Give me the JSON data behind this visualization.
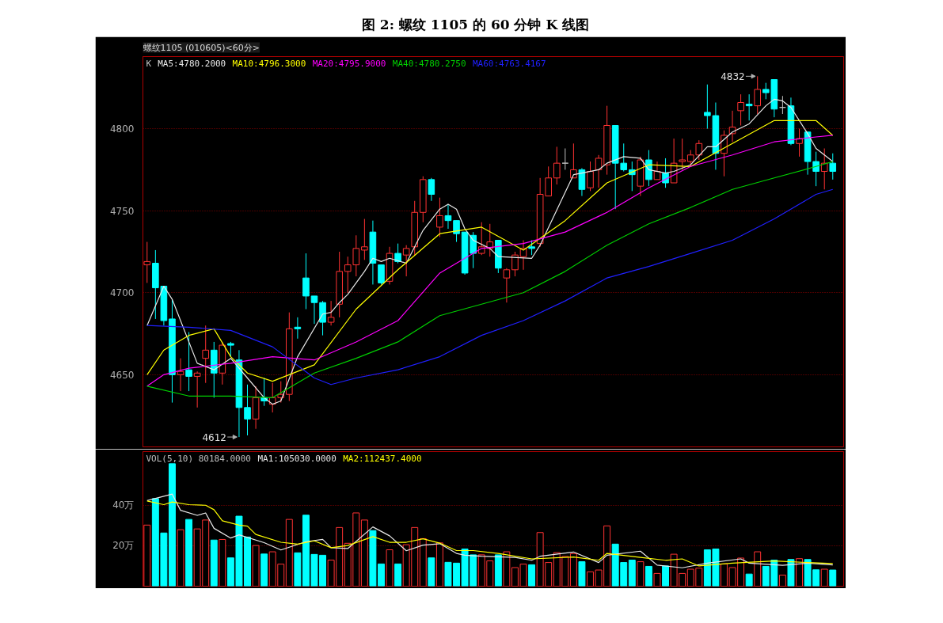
{
  "chart_data": [
    {
      "type": "candlestick",
      "title": "图 2:  螺纹 1105 的 60 分钟 K 线图",
      "subtitle": "螺纹1105 (010605)<60分>",
      "categories": [
        null,
        null,
        null,
        null,
        null,
        null,
        null,
        null,
        null,
        null,
        null,
        null,
        null,
        null,
        null,
        null,
        null,
        null,
        null,
        null,
        null,
        null,
        null,
        null,
        null,
        null,
        null,
        null,
        null,
        null,
        null,
        null,
        null,
        null,
        null,
        null,
        null,
        null,
        null,
        null,
        null,
        null,
        null,
        null,
        null,
        null,
        null,
        null,
        null,
        null,
        null,
        null,
        null,
        null,
        null,
        null,
        null,
        null,
        null,
        null,
        null,
        null,
        null,
        null,
        null,
        null,
        null,
        null,
        null,
        null,
        null,
        null,
        null,
        null,
        null,
        null,
        null,
        null,
        null,
        null,
        null,
        null,
        null
      ],
      "ylim": [
        4606,
        4844
      ],
      "yticks": [
        4650,
        4700,
        4750,
        4800
      ],
      "grid": "y",
      "tick_labels": "y",
      "legend_title": "K",
      "series": [
        {
          "ohlc": [
            [
              4717,
              4731,
              4706,
              4719
            ],
            [
              4718,
              4726,
              4684,
              4703
            ],
            [
              4704,
              4704,
              4680,
              4683
            ],
            [
              4684,
              4696,
              4633,
              4650
            ],
            [
              4650,
              4660,
              4640,
              4652
            ],
            [
              4653,
              4676,
              4640,
              4649
            ],
            [
              4649,
              4652,
              4630,
              4651
            ],
            [
              4660,
              4680,
              4645,
              4665
            ],
            [
              4665,
              4670,
              4636,
              4651
            ],
            [
              4651,
              4670,
              4644,
              4668
            ],
            [
              4669,
              4670,
              4661,
              4668
            ],
            [
              4659,
              4665,
              4612,
              4630
            ],
            [
              4630,
              4644,
              4613,
              4623
            ],
            [
              4623,
              4643,
              4617,
              4636
            ],
            [
              4636,
              4648,
              4631,
              4634
            ],
            [
              4632,
              4645,
              4627,
              4636
            ],
            [
              4636,
              4646,
              4633,
              4638
            ],
            [
              4638,
              4688,
              4634,
              4678
            ],
            [
              4679,
              4685,
              4672,
              4678
            ],
            [
              4709,
              4724,
              4690,
              4698
            ],
            [
              4698,
              4698,
              4681,
              4694
            ],
            [
              4694,
              4695,
              4674,
              4682
            ],
            [
              4682,
              4695,
              4680,
              4685
            ],
            [
              4693,
              4725,
              4685,
              4713
            ],
            [
              4713,
              4722,
              4700,
              4717
            ],
            [
              4717,
              4735,
              4710,
              4727
            ],
            [
              4726,
              4745,
              4720,
              4728
            ],
            [
              4737,
              4744,
              4705,
              4718
            ],
            [
              4717,
              4717,
              4705,
              4706
            ],
            [
              4707,
              4728,
              4705,
              4724
            ],
            [
              4724,
              4730,
              4718,
              4719
            ],
            [
              4723,
              4729,
              4710,
              4727
            ],
            [
              4728,
              4756,
              4723,
              4749
            ],
            [
              4749,
              4771,
              4743,
              4769
            ],
            [
              4769,
              4770,
              4756,
              4760
            ],
            [
              4740,
              4758,
              4734,
              4747
            ],
            [
              4747,
              4754,
              4739,
              4744
            ],
            [
              4744,
              4744,
              4731,
              4736
            ],
            [
              4737,
              4737,
              4711,
              4712
            ],
            [
              4735,
              4737,
              4715,
              4724
            ],
            [
              4724,
              4743,
              4723,
              4728
            ],
            [
              4727,
              4742,
              4722,
              4731
            ],
            [
              4732,
              4732,
              4712,
              4715
            ],
            [
              4709,
              4715,
              4694,
              4714
            ],
            [
              4714,
              4725,
              4710,
              4723
            ],
            [
              4722,
              4732,
              4714,
              4727
            ],
            [
              4728,
              4732,
              4723,
              4727
            ],
            [
              4730,
              4770,
              4728,
              4760
            ],
            [
              4759,
              4777,
              4759,
              4770
            ],
            [
              4770,
              4789,
              4766,
              4779
            ],
            [
              4779,
              4788,
              4775,
              4779
            ],
            [
              4770,
              4791,
              4770,
              4775
            ],
            [
              4775,
              4776,
              4759,
              4763
            ],
            [
              4764,
              4780,
              4762,
              4774
            ],
            [
              4775,
              4784,
              4764,
              4782
            ],
            [
              4778,
              4814,
              4772,
              4802
            ],
            [
              4802,
              4802,
              4751,
              4779
            ],
            [
              4779,
              4791,
              4774,
              4775
            ],
            [
              4775,
              4780,
              4762,
              4772
            ],
            [
              4765,
              4783,
              4759,
              4781
            ],
            [
              4781,
              4787,
              4765,
              4769
            ],
            [
              4769,
              4780,
              4769,
              4774
            ],
            [
              4773,
              4782,
              4764,
              4767
            ],
            [
              4767,
              4794,
              4767,
              4779
            ],
            [
              4780,
              4794,
              4775,
              4781
            ],
            [
              4780,
              4787,
              4777,
              4784
            ],
            [
              4784,
              4793,
              4781,
              4791
            ],
            [
              4810,
              4827,
              4800,
              4808
            ],
            [
              4808,
              4816,
              4775,
              4785
            ],
            [
              4785,
              4799,
              4771,
              4796
            ],
            [
              4797,
              4811,
              4792,
              4801
            ],
            [
              4811,
              4821,
              4802,
              4816
            ],
            [
              4815,
              4821,
              4805,
              4814
            ],
            [
              4814,
              4832,
              4809,
              4824
            ],
            [
              4824,
              4828,
              4818,
              4822
            ],
            [
              4830,
              4830,
              4807,
              4812
            ],
            [
              4813,
              4820,
              4809,
              4813
            ],
            [
              4814,
              4819,
              4790,
              4791
            ],
            [
              4791,
              4800,
              4783,
              4794
            ],
            [
              4798,
              4798,
              4772,
              4780
            ],
            [
              4780,
              4786,
              4765,
              4774
            ],
            [
              4774,
              4788,
              4763,
              4779
            ],
            [
              4779,
              4785,
              4769,
              4774
            ]
          ],
          "colors": [
            "#ff3232",
            "#00ffff",
            "#00ffff",
            "#00ffff",
            "#ff3232",
            "#00ffff",
            "#ff3232",
            "#ff3232",
            "#00ffff",
            "#ff3232",
            "#00ffff",
            "#00ffff",
            "#00ffff",
            "#ff3232",
            "#00ffff",
            "#ff3232",
            "#ff3232",
            "#ff3232",
            "#00ffff",
            "#00ffff",
            "#00ffff",
            "#00ffff",
            "#ff3232",
            "#ff3232",
            "#ff3232",
            "#ff3232",
            "#ff3232",
            "#00ffff",
            "#00ffff",
            "#ff3232",
            "#00ffff",
            "#ff3232",
            "#ff3232",
            "#ff3232",
            "#00ffff",
            "#ff3232",
            "#00ffff",
            "#00ffff",
            "#00ffff",
            "#00ffff",
            "#ff3232",
            "#ff3232",
            "#00ffff",
            "#ff3232",
            "#ff3232",
            "#ff3232",
            "#00ffff",
            "#ff3232",
            "#ff3232",
            "#ff3232",
            "#c0c0c0",
            "#ff3232",
            "#00ffff",
            "#ff3232",
            "#ff3232",
            "#ff3232",
            "#00ffff",
            "#00ffff",
            "#00ffff",
            "#ff3232",
            "#00ffff",
            "#ff3232",
            "#00ffff",
            "#ff3232",
            "#ff3232",
            "#ff3232",
            "#ff3232",
            "#00ffff",
            "#00ffff",
            "#ff3232",
            "#ff3232",
            "#ff3232",
            "#00ffff",
            "#ff3232",
            "#00ffff",
            "#00ffff",
            "#c0c0c0",
            "#00ffff",
            "#ff3232",
            "#00ffff",
            "#00ffff",
            "#ff3232",
            "#00ffff"
          ]
        },
        {
          "type": "line",
          "name": "MA5:4780.2000",
          "color": "#e8e8e8",
          "values": [
            4680,
            null,
            4704,
            4696,
            null,
            null,
            4657,
            null,
            4653,
            null,
            4660,
            null,
            4648,
            null,
            4636,
            4632,
            4634,
            null,
            4661,
            null,
            null,
            4687,
            4688,
            4694,
            4699,
            null,
            4713,
            4721,
            4719,
            4721,
            null,
            4718,
            null,
            4738,
            null,
            4751,
            4754,
            4751,
            4739,
            4732,
            null,
            4727,
            4722,
            null,
            null,
            null,
            4721,
            4729,
            null,
            null,
            null,
            4772,
            4773,
            null,
            4775,
            4779,
            null,
            4783,
            null,
            4782,
            4775,
            null,
            4773,
            4774,
            null,
            4778,
            null,
            4789,
            4789,
            null,
            4798,
            null,
            4803,
            null,
            4814,
            4818,
            4817,
            4813,
            null,
            4797,
            4788,
            null,
            4780
          ]
        },
        {
          "type": "line",
          "name": "MA10:4796.3000",
          "color": "#ffff00",
          "values": [
            4650,
            null,
            4665,
            null,
            null,
            4674,
            null,
            null,
            4678,
            null,
            4661,
            null,
            4651,
            null,
            null,
            4646,
            null,
            null,
            null,
            null,
            4656,
            null,
            null,
            null,
            null,
            4690,
            null,
            null,
            null,
            null,
            4714,
            null,
            null,
            null,
            null,
            4736,
            null,
            null,
            null,
            null,
            4740,
            null,
            null,
            null,
            null,
            4726,
            null,
            null,
            null,
            null,
            4744,
            null,
            null,
            null,
            null,
            4767,
            null,
            null,
            null,
            null,
            4778,
            null,
            null,
            null,
            null,
            4777,
            null,
            null,
            null,
            null,
            4791,
            null,
            null,
            null,
            null,
            4805,
            null,
            null,
            null,
            null,
            4805,
            null,
            4796
          ]
        },
        {
          "type": "line",
          "name": "MA20:4795.9000",
          "color": "#ff00ff",
          "values": [
            4643,
            null,
            4650,
            null,
            null,
            4654,
            null,
            null,
            null,
            null,
            4657,
            null,
            null,
            null,
            null,
            4661,
            null,
            null,
            null,
            null,
            4659,
            null,
            null,
            null,
            null,
            4670,
            null,
            null,
            null,
            null,
            4683,
            null,
            null,
            null,
            null,
            4712,
            null,
            null,
            null,
            null,
            4727,
            null,
            null,
            null,
            null,
            4730,
            null,
            null,
            null,
            null,
            4737,
            null,
            null,
            null,
            null,
            4749,
            null,
            null,
            null,
            null,
            4764,
            null,
            null,
            null,
            null,
            4777,
            null,
            null,
            null,
            null,
            4784,
            null,
            null,
            null,
            null,
            4792,
            null,
            null,
            null,
            null,
            4795,
            null,
            4796
          ]
        },
        {
          "type": "line",
          "name": "MA40:4780.2750",
          "color": "#00d000",
          "values": [
            4643,
            null,
            null,
            null,
            null,
            4637,
            null,
            null,
            null,
            null,
            4637,
            null,
            null,
            null,
            null,
            4636,
            null,
            null,
            null,
            null,
            4651,
            null,
            null,
            null,
            null,
            4660,
            null,
            null,
            null,
            null,
            4670,
            null,
            null,
            null,
            null,
            4686,
            null,
            null,
            null,
            null,
            4693,
            null,
            null,
            null,
            null,
            4700,
            null,
            null,
            null,
            null,
            4713,
            null,
            null,
            null,
            null,
            4729,
            null,
            null,
            null,
            null,
            4742,
            null,
            null,
            null,
            null,
            4752,
            null,
            null,
            null,
            null,
            4763,
            null,
            null,
            null,
            null,
            4770,
            null,
            null,
            null,
            null,
            4777,
            null,
            4780
          ]
        },
        {
          "type": "line",
          "name": "MA60:4763.4167",
          "color": "#2020ff",
          "values": [
            4680,
            null,
            null,
            null,
            null,
            4679,
            null,
            null,
            null,
            null,
            4677,
            null,
            null,
            null,
            null,
            4667,
            null,
            null,
            null,
            null,
            4648,
            null,
            4644,
            null,
            null,
            4648,
            null,
            null,
            null,
            null,
            4653,
            null,
            null,
            null,
            null,
            4661,
            null,
            null,
            null,
            null,
            4674,
            null,
            null,
            null,
            null,
            4683,
            null,
            null,
            null,
            null,
            4695,
            null,
            null,
            null,
            null,
            4709,
            null,
            null,
            null,
            null,
            4716,
            null,
            null,
            null,
            null,
            4724,
            null,
            null,
            null,
            null,
            4732,
            null,
            null,
            null,
            null,
            4745,
            null,
            null,
            null,
            null,
            4760,
            null,
            4763
          ]
        }
      ],
      "annotations": [
        "4612",
        "4832"
      ]
    },
    {
      "type": "bar",
      "categories": [
        null,
        null,
        null,
        null,
        null,
        null,
        null,
        null,
        null,
        null,
        null,
        null,
        null,
        null,
        null,
        null,
        null,
        null,
        null,
        null,
        null,
        null,
        null,
        null,
        null,
        null,
        null,
        null,
        null,
        null,
        null,
        null,
        null,
        null,
        null,
        null,
        null,
        null,
        null,
        null,
        null,
        null,
        null,
        null,
        null,
        null,
        null,
        null,
        null,
        null,
        null,
        null,
        null,
        null,
        null,
        null,
        null,
        null,
        null,
        null,
        null,
        null,
        null,
        null,
        null,
        null,
        null,
        null,
        null,
        null,
        null,
        null,
        null,
        null,
        null,
        null,
        null,
        null,
        null,
        null,
        null,
        null,
        null
      ],
      "ylim": [
        0,
        66.5
      ],
      "yticks": [
        {
          "value": 20,
          "label": "20万"
        },
        {
          "value": 40,
          "label": "40万"
        }
      ],
      "grid": "y",
      "tick_labels": "y",
      "legend_title": "VOL(5,10) 80184.0000",
      "series": [
        {
          "values": [
            30.2,
            43.3,
            26.3,
            60.5,
            27.9,
            33.0,
            28.3,
            32.7,
            22.8,
            23.1,
            14.0,
            34.6,
            24.3,
            20.1,
            15.9,
            17.0,
            10.9,
            33.0,
            16.5,
            35.1,
            15.7,
            15.3,
            12.9,
            29.0,
            21.2,
            36.2,
            32.7,
            27.5,
            11.0,
            18.0,
            11.0,
            20.5,
            29.0,
            23.5,
            14.0,
            21.4,
            11.8,
            11.4,
            18.4,
            15.5,
            15.5,
            12.5,
            15.5,
            17.0,
            9.2,
            10.9,
            10.6,
            26.5,
            11.7,
            16.6,
            14.7,
            16.1,
            12.1,
            7.1,
            8.0,
            29.8,
            20.8,
            11.7,
            12.9,
            12.1,
            9.8,
            6.3,
            10.0,
            15.8,
            6.3,
            8.4,
            8.9,
            18.0,
            18.4,
            11.0,
            9.2,
            13.9,
            6.0,
            17.0,
            9.8,
            12.9,
            5.5,
            13.2,
            13.6,
            13.2,
            8.1,
            8.4,
            8.0
          ],
          "colors": [
            "#ff3232",
            "#00ffff",
            "#00ffff",
            "#00ffff",
            "#ff3232",
            "#00ffff",
            "#ff3232",
            "#ff3232",
            "#00ffff",
            "#ff3232",
            "#00ffff",
            "#00ffff",
            "#00ffff",
            "#ff3232",
            "#00ffff",
            "#ff3232",
            "#ff3232",
            "#ff3232",
            "#00ffff",
            "#00ffff",
            "#00ffff",
            "#00ffff",
            "#ff3232",
            "#ff3232",
            "#ff3232",
            "#ff3232",
            "#ff3232",
            "#00ffff",
            "#00ffff",
            "#ff3232",
            "#00ffff",
            "#ff3232",
            "#ff3232",
            "#ff3232",
            "#00ffff",
            "#ff3232",
            "#00ffff",
            "#00ffff",
            "#00ffff",
            "#00ffff",
            "#ff3232",
            "#ff3232",
            "#00ffff",
            "#ff3232",
            "#ff3232",
            "#ff3232",
            "#00ffff",
            "#ff3232",
            "#ff3232",
            "#ff3232",
            "#ff3232",
            "#ff3232",
            "#00ffff",
            "#ff3232",
            "#ff3232",
            "#ff3232",
            "#00ffff",
            "#00ffff",
            "#00ffff",
            "#ff3232",
            "#00ffff",
            "#ff3232",
            "#00ffff",
            "#ff3232",
            "#ff3232",
            "#ff3232",
            "#ff3232",
            "#00ffff",
            "#00ffff",
            "#ff3232",
            "#ff3232",
            "#ff3232",
            "#00ffff",
            "#ff3232",
            "#00ffff",
            "#00ffff",
            "#ff3232",
            "#00ffff",
            "#ff3232",
            "#00ffff",
            "#00ffff",
            "#ff3232",
            "#00ffff"
          ]
        },
        {
          "type": "line",
          "name": "MA1:105030.0000",
          "color": "#e8e8e8",
          "values": [
            42.3,
            null,
            null,
            45.5,
            37.5,
            null,
            35,
            36.2,
            28.6,
            null,
            23.8,
            25.4,
            null,
            null,
            21.5,
            null,
            17.9,
            null,
            null,
            22,
            null,
            23.1,
            19,
            null,
            18.6,
            null,
            null,
            29.3,
            null,
            24.9,
            null,
            17.5,
            null,
            20.3,
            null,
            21,
            null,
            16.2,
            15.3,
            null,
            14.8,
            null,
            null,
            null,
            14.2,
            null,
            12.8,
            14.8,
            null,
            null,
            null,
            16.9,
            null,
            null,
            11.7,
            15.3,
            null,
            null,
            null,
            17.3,
            null,
            10.4,
            null,
            null,
            9.1,
            null,
            null,
            11.4,
            null,
            null,
            null,
            13.5,
            11.4,
            null,
            null,
            null,
            10.3,
            null,
            null,
            11.4,
            null,
            null,
            10.5
          ]
        },
        {
          "type": "line",
          "name": "MA2:112437.4000",
          "color": "#ffff00",
          "values": [
            42.1,
            null,
            40.3,
            41.6,
            null,
            40.3,
            null,
            40,
            37.8,
            32.3,
            null,
            30.2,
            29.7,
            25.6,
            null,
            null,
            21.7,
            null,
            20.8,
            null,
            22.4,
            null,
            19,
            null,
            20.1,
            null,
            null,
            24.5,
            null,
            21.7,
            null,
            21.7,
            null,
            23.4,
            null,
            21.3,
            null,
            17.6,
            null,
            17.6,
            null,
            null,
            16.2,
            null,
            null,
            null,
            13.5,
            null,
            null,
            null,
            null,
            14.4,
            null,
            null,
            12.8,
            16.2,
            null,
            null,
            null,
            14.2,
            null,
            null,
            12.8,
            null,
            13.5,
            null,
            10,
            null,
            null,
            null,
            11.4,
            null,
            null,
            null,
            null,
            12.5,
            null,
            null,
            null,
            11.7,
            null,
            null,
            11.2
          ]
        }
      ]
    }
  ]
}
